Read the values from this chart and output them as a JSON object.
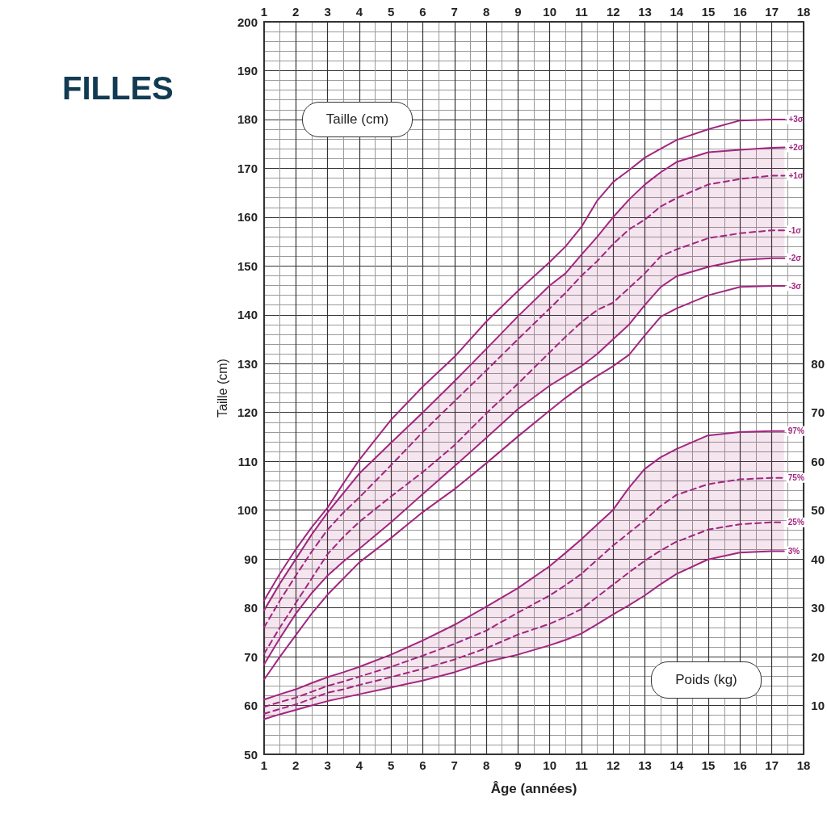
{
  "chart_data": [
    {
      "type": "line",
      "title": "FILLES",
      "xlabel": "Âge (années)",
      "ylabel": "Taille (cm)",
      "annotations": [
        "Taille (cm)"
      ],
      "x": [
        1,
        1.5,
        2,
        2.5,
        3,
        3.5,
        4,
        5,
        6,
        7,
        8,
        9,
        10,
        10.5,
        11,
        11.5,
        12,
        12.5,
        13,
        13.5,
        14,
        15,
        16,
        17,
        17.4
      ],
      "xlim": [
        1,
        18
      ],
      "xticks": [
        1,
        2,
        3,
        4,
        5,
        6,
        7,
        8,
        9,
        10,
        11,
        12,
        13,
        14,
        15,
        16,
        17,
        18
      ],
      "x2lim": [
        1,
        18
      ],
      "x2ticks": [
        1,
        2,
        3,
        4,
        5,
        6,
        7,
        8,
        9,
        10,
        11,
        12,
        13,
        14,
        15,
        16,
        17,
        18
      ],
      "ylim": [
        50,
        200
      ],
      "yticks": [
        50,
        60,
        70,
        80,
        90,
        100,
        110,
        120,
        130,
        140,
        150,
        160,
        170,
        180,
        190,
        200
      ],
      "grid": true,
      "marker": "none",
      "series": [
        {
          "name": "+3σ",
          "color": "#a3267f",
          "line_style": "solid",
          "values": [
            81.5,
            87,
            92,
            96.5,
            100.5,
            105.5,
            110.3,
            118.5,
            125.3,
            131.4,
            138.6,
            144.9,
            150.8,
            154,
            158,
            163.4,
            167.2,
            169.6,
            172.2,
            174,
            175.8,
            178,
            179.8,
            180,
            180
          ]
        },
        {
          "name": "+2σ",
          "color": "#a3267f",
          "line_style": "solid",
          "values": [
            79.5,
            85,
            90,
            95,
            99.5,
            103.5,
            107.5,
            113.8,
            120,
            126.4,
            133,
            139.7,
            146,
            148.5,
            152.3,
            156,
            160,
            163.6,
            166.7,
            169.2,
            171.3,
            173.3,
            173.8,
            174.2,
            174.3
          ]
        },
        {
          "name": "+1σ",
          "color": "#a3267f",
          "line_style": "dashed",
          "values": [
            76,
            81.5,
            86.6,
            91.5,
            96,
            99.5,
            102.6,
            109.2,
            116,
            122.3,
            128.6,
            135,
            141.3,
            144.5,
            148,
            151,
            154.5,
            157.5,
            159.5,
            162.2,
            163.9,
            166.7,
            167.8,
            168.5,
            168.5
          ],
          "lower": [
            68.4,
            73.8,
            78.8,
            83,
            86.6,
            89.5,
            92.1,
            97.5,
            103.3,
            109,
            114.8,
            120.7,
            125.5,
            127.5,
            129.5,
            132,
            135,
            138,
            142,
            145.7,
            147.9,
            149.8,
            151.2,
            151.6,
            151.6
          ],
          "upper": [
            79.5,
            85,
            90,
            95,
            99.5,
            103.5,
            107.5,
            113.8,
            120,
            126.4,
            133,
            139.7,
            146,
            148.5,
            152.3,
            156,
            160,
            163.6,
            166.7,
            169.2,
            171.3,
            173.3,
            173.8,
            174.2,
            174.3
          ]
        },
        {
          "name": "-1σ",
          "color": "#a3267f",
          "line_style": "dashed",
          "values": [
            70.6,
            76,
            81,
            86,
            91,
            94.5,
            97.6,
            102.8,
            107.8,
            113.3,
            119.8,
            125.9,
            132.3,
            135.5,
            138.5,
            141,
            142.5,
            145.5,
            148.5,
            152,
            153.4,
            155.7,
            156.7,
            157.3,
            157.3
          ]
        },
        {
          "name": "-2σ",
          "color": "#a3267f",
          "line_style": "solid",
          "values": [
            68.4,
            73.8,
            78.8,
            83,
            86.6,
            89.5,
            92.1,
            97.5,
            103.3,
            109,
            114.8,
            120.7,
            125.5,
            127.5,
            129.5,
            132,
            135,
            138,
            142,
            145.7,
            147.9,
            149.8,
            151.2,
            151.6,
            151.6
          ]
        },
        {
          "name": "-3σ",
          "color": "#a3267f",
          "line_style": "solid",
          "values": [
            65.3,
            70,
            74.4,
            78.8,
            82.7,
            86,
            89.3,
            94.3,
            99.6,
            104.3,
            109.6,
            115.1,
            120.4,
            123,
            125.4,
            127.5,
            129.5,
            131.8,
            135.8,
            139.6,
            141.3,
            144,
            145.7,
            145.9,
            145.9
          ]
        }
      ]
    },
    {
      "type": "line",
      "annotations": [
        "Poids (kg)"
      ],
      "x": [
        1,
        1.5,
        2,
        2.5,
        3,
        3.5,
        4,
        5,
        6,
        7,
        8,
        9,
        10,
        10.5,
        11,
        11.5,
        12,
        12.5,
        13,
        13.5,
        14,
        15,
        16,
        17,
        17.4
      ],
      "xlim": [
        1,
        18
      ],
      "ylim": [
        0,
        150
      ],
      "yticks": [
        10,
        20,
        30,
        40,
        50,
        60,
        70,
        80
      ],
      "tick_labels": "y",
      "marker": "none",
      "series": [
        {
          "name": "97%",
          "color": "#a3267f",
          "line_style": "solid",
          "values": [
            11.2,
            12.3,
            13.3,
            14.6,
            15.8,
            16.8,
            17.9,
            20.4,
            23.3,
            26.5,
            30.2,
            34,
            38.5,
            41.2,
            44,
            47,
            50,
            54.5,
            58.4,
            60.8,
            62.5,
            65.3,
            66,
            66.2,
            66.2
          ]
        },
        {
          "name": "75%",
          "color": "#a3267f",
          "line_style": "dashed",
          "values": [
            9.7,
            10.7,
            11.6,
            12.8,
            14,
            14.9,
            15.9,
            17.9,
            20.2,
            22.6,
            25.3,
            29,
            32.5,
            34.6,
            36.9,
            39.8,
            42.7,
            45.3,
            47.9,
            50.8,
            53.1,
            55.3,
            56.3,
            56.6,
            56.6
          ],
          "lower": [
            7.2,
            8.2,
            9.1,
            10,
            10.9,
            11.6,
            12.3,
            13.7,
            15.1,
            16.8,
            18.9,
            20.4,
            22.3,
            23.4,
            24.7,
            26.6,
            28.6,
            30.5,
            32.5,
            34.8,
            36.9,
            39.9,
            41.3,
            41.6,
            41.6
          ],
          "upper": [
            11.2,
            12.3,
            13.3,
            14.6,
            15.8,
            16.8,
            17.9,
            20.4,
            23.3,
            26.5,
            30.2,
            34,
            38.5,
            41.2,
            44,
            47,
            50,
            54.5,
            58.4,
            60.8,
            62.5,
            65.3,
            66,
            66.2,
            66.2
          ]
        },
        {
          "name": "25%",
          "color": "#a3267f",
          "line_style": "dashed",
          "values": [
            8.3,
            9.3,
            10.2,
            11.4,
            12.6,
            13.3,
            14.2,
            15.8,
            17.5,
            19.4,
            21.7,
            24.5,
            26.7,
            28.1,
            29.7,
            32.2,
            34.7,
            37.2,
            39.6,
            41.7,
            43.5,
            46,
            47.1,
            47.5,
            47.5
          ]
        },
        {
          "name": "3%",
          "color": "#a3267f",
          "line_style": "solid",
          "values": [
            7.2,
            8.2,
            9.1,
            10,
            10.9,
            11.6,
            12.3,
            13.7,
            15.1,
            16.8,
            18.9,
            20.4,
            22.3,
            23.4,
            24.7,
            26.6,
            28.6,
            30.5,
            32.5,
            34.8,
            36.9,
            39.9,
            41.3,
            41.6,
            41.6
          ]
        }
      ]
    }
  ]
}
